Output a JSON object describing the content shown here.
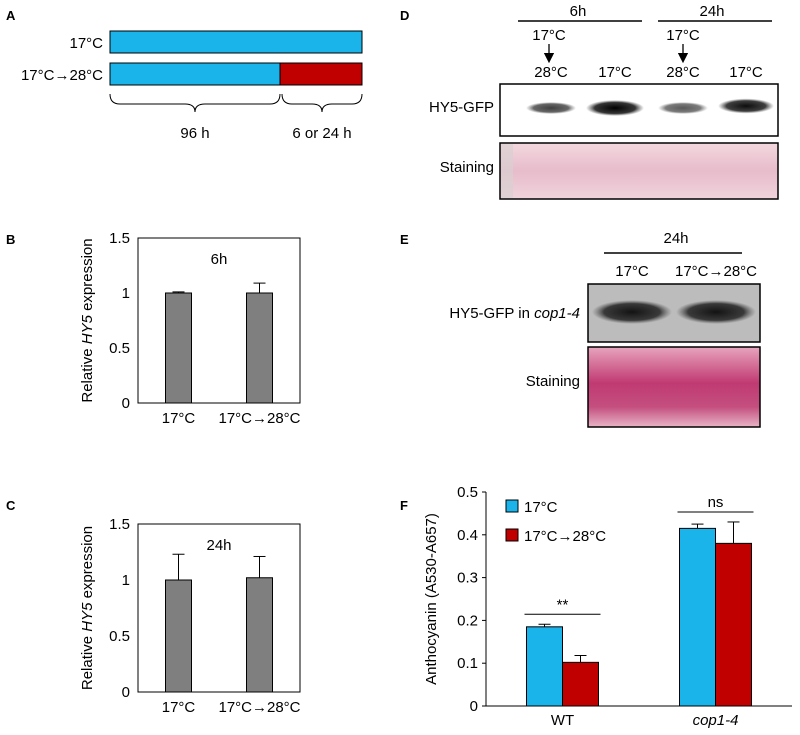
{
  "panel_labels": {
    "a": "A",
    "b": "B",
    "c": "C",
    "d": "D",
    "e": "E",
    "f": "F"
  },
  "colors": {
    "blue": "#1ab4ea",
    "red": "#c00000",
    "gray": "#7f7f7f",
    "blot_bg": "#b5b5b5",
    "stain": "#e9c6cf",
    "stain_e": "#c03a72"
  },
  "panel_a": {
    "row1_label": "17°C",
    "row2_label": "17°C→28°C",
    "brace1_label": "96 h",
    "brace2_label": "6 or 24 h"
  },
  "panel_d": {
    "group1": "6h",
    "group2": "24h",
    "from_temp_1": "17°C",
    "from_temp_2": "17°C",
    "lane_labels": [
      "28°C",
      "17°C",
      "28°C",
      "17°C"
    ],
    "blot_label": "HY5-GFP",
    "stain_label": "Staining"
  },
  "panel_e": {
    "group": "24h",
    "lane_labels": [
      "17°C",
      "17°C→28°C"
    ],
    "blot_label_prefix": "HY5-GFP in ",
    "blot_label_italic": "cop1-4",
    "stain_label": "Staining"
  },
  "chart_data": [
    {
      "id": "B",
      "type": "bar",
      "title": "6h",
      "ylabel_prefix": "Relative ",
      "ylabel_italic": "HY5",
      "ylabel_suffix": " expression",
      "categories": [
        "17°C",
        "17°C→28°C"
      ],
      "values": [
        1.0,
        1.0
      ],
      "errors": [
        0.01,
        0.09
      ],
      "ylim": [
        0,
        1.5
      ],
      "yticks": [
        "0",
        "0.5",
        "1",
        "1.5"
      ]
    },
    {
      "id": "C",
      "type": "bar",
      "title": "24h",
      "ylabel_prefix": "Relative ",
      "ylabel_italic": "HY5",
      "ylabel_suffix": " expression",
      "categories": [
        "17°C",
        "17°C→28°C"
      ],
      "values": [
        1.0,
        1.02
      ],
      "errors": [
        0.23,
        0.19
      ],
      "ylim": [
        0,
        1.5
      ],
      "yticks": [
        "0",
        "0.5",
        "1",
        "1.5"
      ]
    },
    {
      "id": "F",
      "type": "bar",
      "ylabel": "Anthocyanin (A530-A657)",
      "categories": [
        "WT",
        "cop1-4"
      ],
      "series": [
        {
          "name": "17°C",
          "values": [
            0.185,
            0.415
          ],
          "errors": [
            0.006,
            0.01
          ]
        },
        {
          "name": "17°C→28°C",
          "values": [
            0.102,
            0.38
          ],
          "errors": [
            0.016,
            0.05
          ]
        }
      ],
      "ylim": [
        0,
        0.5
      ],
      "yticks": [
        "0",
        "0.1",
        "0.2",
        "0.3",
        "0.4",
        "0.5"
      ],
      "significance": [
        "**",
        "ns"
      ],
      "legend": "top-left"
    }
  ]
}
